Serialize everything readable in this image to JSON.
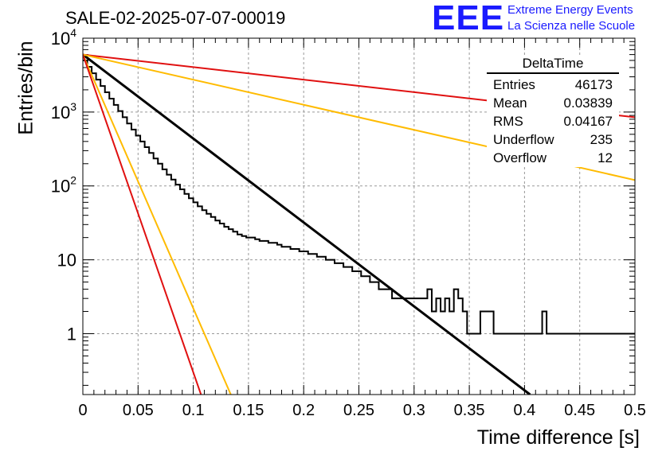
{
  "title": "SALE-02-2025-07-07-00019",
  "logo": {
    "mark": "EEE",
    "line1": "Extreme Energy Events",
    "line2": "La Scienza nelle Scuole"
  },
  "stats": {
    "name": "DeltaTime",
    "rows": [
      {
        "label": "Entries",
        "value": "46173"
      },
      {
        "label": "Mean",
        "value": "0.03839"
      },
      {
        "label": "RMS",
        "value": "0.04167"
      },
      {
        "label": "Underflow",
        "value": "235"
      },
      {
        "label": "Overflow",
        "value": "12"
      }
    ]
  },
  "chart_data": {
    "type": "histogram",
    "title": "SALE-02-2025-07-07-00019",
    "xlabel": "Time difference [s]",
    "ylabel": "Entries/bin",
    "xlim": [
      0,
      0.5
    ],
    "ylim": [
      0.15,
      10000
    ],
    "yscale": "log",
    "grid": true,
    "x_ticks": [
      "0",
      "0.05",
      "0.1",
      "0.15",
      "0.2",
      "0.25",
      "0.3",
      "0.35",
      "0.4",
      "0.45",
      "0.5"
    ],
    "y_ticks": [
      {
        "value": 1,
        "label": "1"
      },
      {
        "value": 10,
        "label": "10"
      },
      {
        "value": 100,
        "label": "10^2"
      },
      {
        "value": 1000,
        "label": "10^3"
      },
      {
        "value": 10000,
        "label": "10^4"
      }
    ],
    "bin_width": 0.004,
    "histogram": {
      "color": "#000000",
      "values": [
        5000,
        4100,
        3350,
        2750,
        2250,
        1850,
        1520,
        1250,
        1030,
        850,
        700,
        580,
        480,
        400,
        335,
        280,
        235,
        200,
        168,
        142,
        122,
        104,
        90,
        78,
        68,
        60,
        53,
        47,
        42,
        38,
        34,
        31,
        28,
        26,
        24,
        22,
        21,
        20,
        20,
        19,
        18,
        18,
        17,
        17,
        16,
        15,
        15,
        14,
        14,
        13,
        13,
        12,
        12,
        11,
        11,
        10,
        10,
        9,
        9,
        8,
        8,
        7,
        7,
        6,
        6,
        5,
        5,
        4,
        4,
        4,
        3,
        3,
        3,
        3,
        3,
        3,
        3,
        3,
        4,
        2,
        3,
        2,
        3,
        2,
        4,
        3,
        2,
        1,
        1,
        1,
        2,
        2,
        2,
        1,
        1,
        1,
        1,
        1,
        1,
        1,
        1,
        1,
        1,
        1,
        2,
        1,
        1,
        1,
        1,
        1,
        1,
        1,
        1,
        1,
        1,
        1,
        1,
        1,
        1,
        1,
        1,
        1,
        1,
        1,
        1,
        1,
        1,
        1,
        1,
        1,
        1,
        1,
        1,
        1,
        1,
        1,
        1,
        1,
        1,
        1,
        1,
        1,
        1,
        1,
        1,
        1,
        1,
        1,
        1,
        1,
        1,
        1,
        1,
        1,
        1,
        1,
        1,
        1,
        1,
        1,
        1,
        1,
        1,
        1,
        1,
        1,
        1,
        1,
        1,
        1,
        1,
        1,
        1,
        1,
        1,
        1,
        1,
        1,
        1,
        1,
        1,
        1,
        1,
        1,
        1,
        1,
        1,
        1,
        1,
        1,
        1,
        1,
        1,
        1
      ]
    },
    "lines": [
      {
        "color": "#000000",
        "x0": 0.0,
        "y0": 6000,
        "x1": 0.405,
        "y1": 0.15
      },
      {
        "color": "#e01010",
        "x0": 0.0,
        "y0": 6000,
        "x1": 0.5,
        "y1": 850
      },
      {
        "color": "#ffbb00",
        "x0": 0.0,
        "y0": 6000,
        "x1": 0.5,
        "y1": 120
      },
      {
        "color": "#ffbb00",
        "x0": 0.0,
        "y0": 6000,
        "x1": 0.134,
        "y1": 0.15
      },
      {
        "color": "#e01010",
        "x0": 0.0,
        "y0": 6000,
        "x1": 0.107,
        "y1": 0.15
      }
    ]
  }
}
